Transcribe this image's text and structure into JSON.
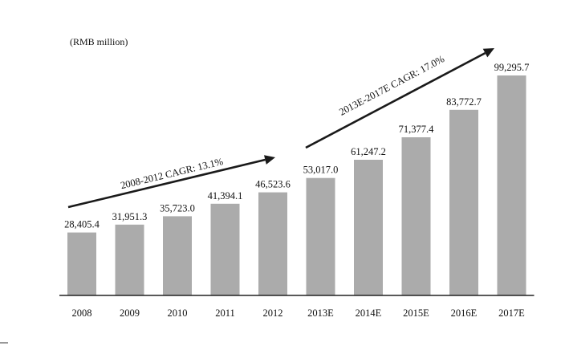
{
  "chart_data": {
    "type": "bar",
    "unit_label": "(RMB million)",
    "categories": [
      "2008",
      "2009",
      "2010",
      "2011",
      "2012",
      "2013E",
      "2014E",
      "2015E",
      "2016E",
      "2017E"
    ],
    "values": [
      28405.4,
      31951.3,
      35723.0,
      41394.1,
      46523.6,
      53017.0,
      61247.2,
      71377.4,
      83772.7,
      99295.7
    ],
    "value_labels": [
      "28,405.4",
      "31,951.3",
      "35,723.0",
      "41,394.1",
      "46,523.6",
      "53,017.0",
      "61,247.2",
      "71,377.4",
      "83,772.7",
      "99,295.7"
    ],
    "ylim": [
      0,
      100000
    ],
    "bar_color": "#ababab",
    "annotations": [
      {
        "text": "2008-2012 CAGR: 13.1%",
        "from_category": "2008",
        "to_category": "2012"
      },
      {
        "text": "2013E-2017E CAGR: 17.0%",
        "from_category": "2013E",
        "to_category": "2017E"
      }
    ],
    "grid": false,
    "legend": "none"
  }
}
